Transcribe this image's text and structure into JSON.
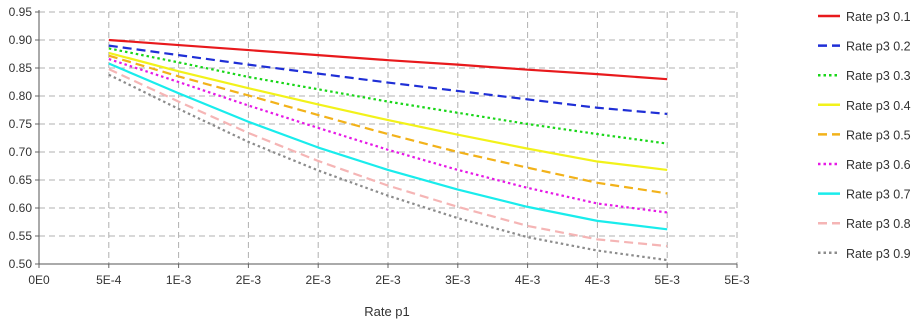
{
  "chart_data": {
    "type": "line",
    "title": "",
    "xlabel": "Rate p1",
    "ylabel": "",
    "x_tick_labels": [
      "0E0",
      "5E-4",
      "1E-3",
      "2E-3",
      "2E-3",
      "2E-3",
      "3E-3",
      "4E-3",
      "4E-3",
      "5E-3",
      "5E-3"
    ],
    "y_tick_labels": [
      "0.50",
      "0.55",
      "0.60",
      "0.65",
      "0.70",
      "0.75",
      "0.80",
      "0.85",
      "0.90",
      "0.95"
    ],
    "xlim": [
      0,
      0.005
    ],
    "ylim": [
      0.5,
      0.95
    ],
    "grid": true,
    "legend_position": "right",
    "x": [
      0.0005,
      0.001,
      0.0015,
      0.002,
      0.0025,
      0.003,
      0.0035,
      0.004,
      0.0045
    ],
    "series": [
      {
        "name": "Rate p3 0.1",
        "color": "#e8191c",
        "dash": "solid",
        "values": [
          0.9,
          0.891,
          0.882,
          0.873,
          0.864,
          0.856,
          0.847,
          0.839,
          0.83
        ]
      },
      {
        "name": "Rate p3 0.2",
        "color": "#1f2fd6",
        "dash": "dashed",
        "values": [
          0.89,
          0.873,
          0.856,
          0.84,
          0.824,
          0.809,
          0.794,
          0.779,
          0.768
        ]
      },
      {
        "name": "Rate p3 0.3",
        "color": "#19d619",
        "dash": "dotted",
        "values": [
          0.885,
          0.86,
          0.834,
          0.812,
          0.79,
          0.77,
          0.75,
          0.732,
          0.715
        ]
      },
      {
        "name": "Rate p3 0.4",
        "color": "#f2f21a",
        "dash": "solid",
        "values": [
          0.877,
          0.844,
          0.814,
          0.785,
          0.757,
          0.731,
          0.706,
          0.683,
          0.668
        ]
      },
      {
        "name": "Rate p3 0.5",
        "color": "#f2b21a",
        "dash": "dashed",
        "values": [
          0.872,
          0.835,
          0.801,
          0.766,
          0.732,
          0.7,
          0.672,
          0.645,
          0.626
        ]
      },
      {
        "name": "Rate p3 0.6",
        "color": "#e619e6",
        "dash": "dotted",
        "values": [
          0.866,
          0.825,
          0.783,
          0.743,
          0.704,
          0.668,
          0.636,
          0.608,
          0.592
        ]
      },
      {
        "name": "Rate p3 0.7",
        "color": "#19ecec",
        "dash": "solid",
        "values": [
          0.858,
          0.805,
          0.754,
          0.708,
          0.668,
          0.633,
          0.602,
          0.577,
          0.562
        ]
      },
      {
        "name": "Rate p3 0.8",
        "color": "#f5b5b5",
        "dash": "dashed",
        "values": [
          0.848,
          0.79,
          0.734,
          0.684,
          0.64,
          0.602,
          0.568,
          0.544,
          0.532
        ]
      },
      {
        "name": "Rate p3 0.9",
        "color": "#8c8c8c",
        "dash": "dotted",
        "values": [
          0.838,
          0.777,
          0.718,
          0.667,
          0.622,
          0.582,
          0.548,
          0.524,
          0.507
        ]
      }
    ]
  }
}
